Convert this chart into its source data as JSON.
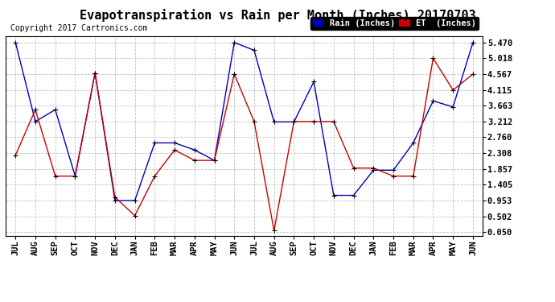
{
  "title": "Evapotranspiration vs Rain per Month (Inches) 20170703",
  "copyright": "Copyright 2017 Cartronics.com",
  "months": [
    "JUL",
    "AUG",
    "SEP",
    "OCT",
    "NOV",
    "DEC",
    "JAN",
    "FEB",
    "MAR",
    "APR",
    "MAY",
    "JUN",
    "JUL",
    "AUG",
    "SEP",
    "OCT",
    "NOV",
    "DEC",
    "JAN",
    "FEB",
    "MAR",
    "APR",
    "MAY",
    "JUN"
  ],
  "rain_inches": [
    5.47,
    3.21,
    3.55,
    1.65,
    4.6,
    0.95,
    0.95,
    2.6,
    2.6,
    2.4,
    2.1,
    5.47,
    5.25,
    3.2,
    3.2,
    4.35,
    1.1,
    1.1,
    1.82,
    1.82,
    2.6,
    3.8,
    3.63,
    5.47
  ],
  "et_inches": [
    2.25,
    3.55,
    1.65,
    1.65,
    4.6,
    1.05,
    0.52,
    1.65,
    2.4,
    2.1,
    2.1,
    4.57,
    3.21,
    0.09,
    3.21,
    3.21,
    3.21,
    1.88,
    1.88,
    1.65,
    1.65,
    5.02,
    4.11,
    4.57
  ],
  "rain_color": "#0000bb",
  "et_color": "#cc0000",
  "bg_color": "#ffffff",
  "grid_color": "#bbbbbb",
  "yticks": [
    0.05,
    0.502,
    0.953,
    1.405,
    1.857,
    2.308,
    2.76,
    3.212,
    3.663,
    4.115,
    4.567,
    5.018,
    5.47
  ],
  "ylim": [
    -0.05,
    5.65
  ],
  "legend_rain_label": "Rain (Inches)",
  "legend_et_label": "ET  (Inches)",
  "title_fontsize": 11,
  "copyright_fontsize": 7,
  "axis_fontsize": 7.5
}
